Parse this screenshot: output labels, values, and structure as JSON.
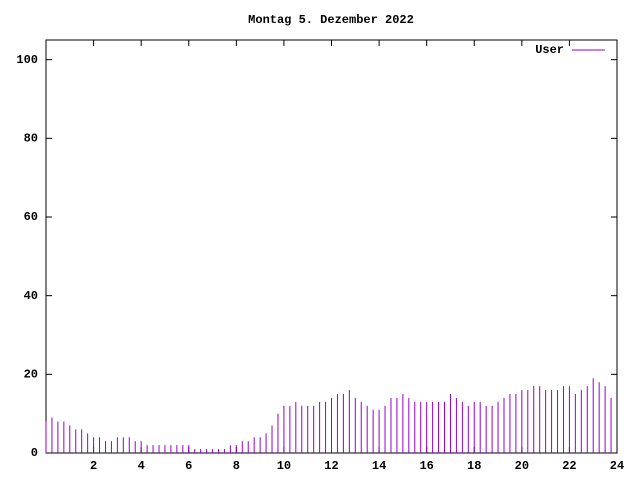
{
  "chart_data": {
    "type": "impulses",
    "title": "Montag 5. Dezember 2022",
    "x": [
      0,
      0.25,
      0.5,
      0.75,
      1,
      1.25,
      1.5,
      1.75,
      2,
      2.25,
      2.5,
      2.75,
      3,
      3.25,
      3.5,
      3.75,
      4,
      4.25,
      4.5,
      4.75,
      5,
      5.25,
      5.5,
      5.75,
      6,
      6.25,
      6.5,
      6.75,
      7,
      7.25,
      7.5,
      7.75,
      8,
      8.25,
      8.5,
      8.75,
      9,
      9.25,
      9.5,
      9.75,
      10,
      10.25,
      10.5,
      10.75,
      11,
      11.25,
      11.5,
      11.75,
      12,
      12.25,
      12.5,
      12.75,
      13,
      13.25,
      13.5,
      13.75,
      14,
      14.25,
      14.5,
      14.75,
      15,
      15.25,
      15.5,
      15.75,
      16,
      16.25,
      16.5,
      16.75,
      17,
      17.25,
      17.5,
      17.75,
      18,
      18.25,
      18.5,
      18.75,
      19,
      19.25,
      19.5,
      19.75,
      20,
      20.25,
      20.5,
      20.75,
      21,
      21.25,
      21.5,
      21.75,
      22,
      22.25,
      22.5,
      22.75,
      23,
      23.25,
      23.5,
      23.75
    ],
    "series": [
      {
        "name": "User",
        "color": "#9400d3",
        "values": [
          8,
          9,
          8,
          8,
          7,
          6,
          6,
          5,
          4,
          4,
          3,
          3,
          4,
          4,
          4,
          3,
          3,
          2,
          2,
          2,
          2,
          2,
          2,
          2,
          2,
          1,
          1,
          1,
          1,
          1,
          1,
          2,
          2,
          3,
          3,
          4,
          4,
          5,
          7,
          10,
          12,
          12,
          13,
          12,
          12,
          12,
          13,
          13,
          14,
          15,
          15,
          16,
          14,
          13,
          12,
          11,
          11,
          12,
          14,
          14,
          15,
          14,
          13,
          13,
          13,
          13,
          13,
          13,
          15,
          14,
          13,
          12,
          13,
          13,
          12,
          12,
          13,
          14,
          15,
          15,
          16,
          16,
          17,
          17,
          16,
          16,
          16,
          17,
          17,
          15,
          16,
          17,
          19,
          18,
          17,
          14
        ]
      }
    ],
    "xlim": [
      0,
      24
    ],
    "xticks": [
      2,
      4,
      6,
      8,
      10,
      12,
      14,
      16,
      18,
      20,
      22,
      24
    ],
    "ylim": [
      0,
      105
    ],
    "yticks": [
      0,
      20,
      40,
      60,
      80,
      100
    ],
    "legend": "top-right"
  }
}
